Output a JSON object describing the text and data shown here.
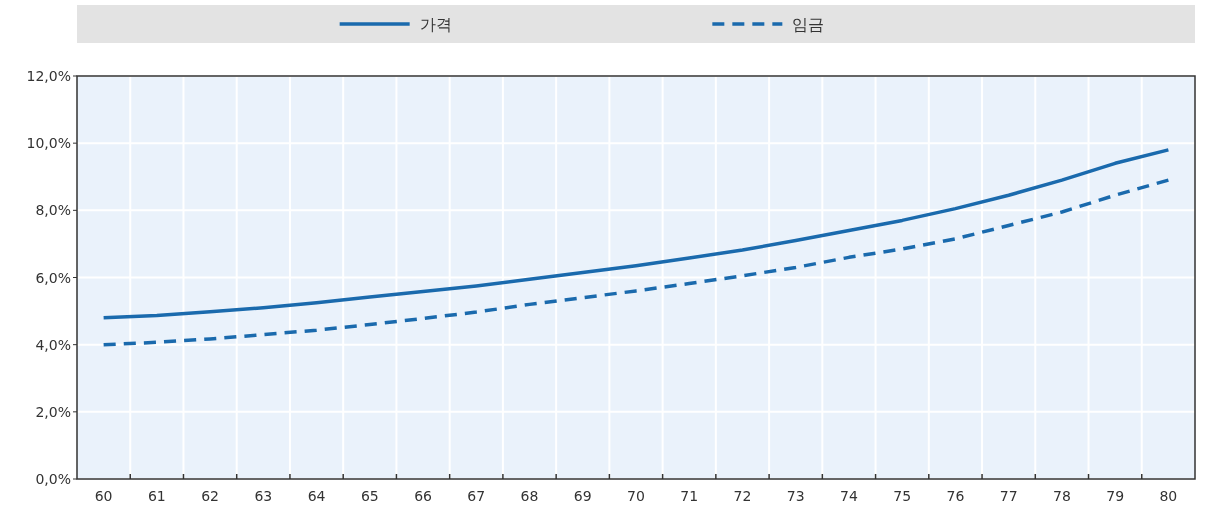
{
  "chart_data": {
    "type": "line",
    "categories": [
      "60",
      "61",
      "62",
      "63",
      "64",
      "65",
      "66",
      "67",
      "68",
      "69",
      "70",
      "71",
      "72",
      "73",
      "74",
      "75",
      "76",
      "77",
      "78",
      "79",
      "80"
    ],
    "series": [
      {
        "name": "가격",
        "color": "#1a6aad",
        "line_style": "solid",
        "values": [
          4.8,
          4.87,
          4.98,
          5.1,
          5.25,
          5.42,
          5.58,
          5.75,
          5.95,
          6.15,
          6.35,
          6.58,
          6.82,
          7.1,
          7.4,
          7.7,
          8.05,
          8.45,
          8.9,
          9.4,
          9.8
        ]
      },
      {
        "name": "임금",
        "color": "#1a6aad",
        "line_style": "dashed",
        "values": [
          4.0,
          4.07,
          4.17,
          4.3,
          4.43,
          4.6,
          4.78,
          4.97,
          5.2,
          5.4,
          5.6,
          5.82,
          6.05,
          6.3,
          6.6,
          6.85,
          7.15,
          7.55,
          7.95,
          8.45,
          8.9
        ]
      }
    ],
    "ylim": [
      0,
      12
    ],
    "yticks": [
      {
        "value": 0,
        "label": "0,0%"
      },
      {
        "value": 2,
        "label": "2,0%"
      },
      {
        "value": 4,
        "label": "4,0%"
      },
      {
        "value": 6,
        "label": "6,0%"
      },
      {
        "value": 8,
        "label": "8,0%"
      },
      {
        "value": 10,
        "label": "10,0%"
      },
      {
        "value": 12,
        "label": "12,0%"
      }
    ],
    "grid": true,
    "legend": "top"
  }
}
